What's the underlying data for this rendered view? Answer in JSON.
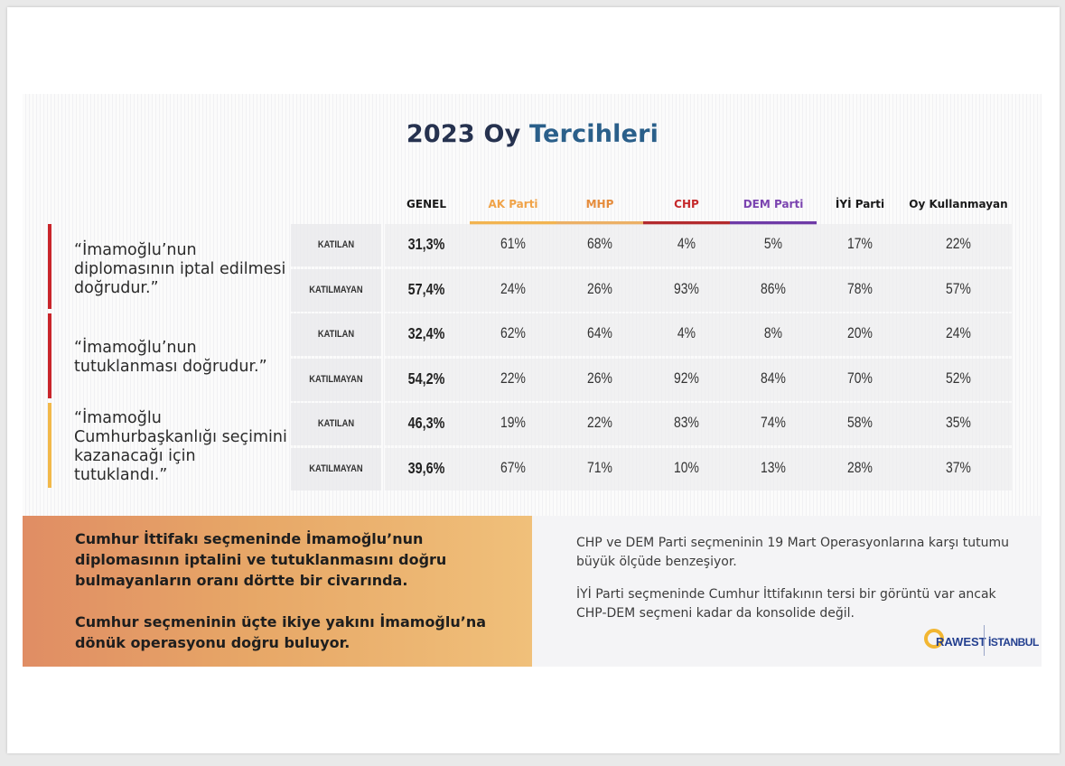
{
  "title": {
    "part1": "2023 Oy",
    "part2": "Tercihleri"
  },
  "chart_data": {
    "type": "table",
    "title": "2023 Oy Tercihleri",
    "columns": [
      {
        "label": "GENEL",
        "color": "#1a1a1a"
      },
      {
        "label": "AK Parti",
        "color": "#f0a348"
      },
      {
        "label": "MHP",
        "color": "#e58c3c"
      },
      {
        "label": "CHP",
        "color": "#c5292b"
      },
      {
        "label": "DEM Parti",
        "color": "#7b44b0"
      },
      {
        "label": "İYİ Parti",
        "color": "#1a1a1a"
      },
      {
        "label": "Oy Kullanmayan",
        "color": "#1a1a1a"
      }
    ],
    "statements": [
      {
        "text": "“İmamoğlu’nun diplomasının iptal edilmesi doğrudur.”",
        "bar_color": "#c9252b",
        "rows": [
          {
            "label": "KATILAN",
            "values": [
              "31,3%",
              "61%",
              "68%",
              "4%",
              "5%",
              "17%",
              "22%"
            ]
          },
          {
            "label": "KATILMAYAN",
            "values": [
              "57,4%",
              "24%",
              "26%",
              "93%",
              "86%",
              "78%",
              "57%"
            ]
          }
        ]
      },
      {
        "text": "“İmamoğlu’nun tutuklanması doğrudur.”",
        "bar_color": "#c9252b",
        "rows": [
          {
            "label": "KATILAN",
            "values": [
              "32,4%",
              "62%",
              "64%",
              "4%",
              "8%",
              "20%",
              "24%"
            ]
          },
          {
            "label": "KATILMAYAN",
            "values": [
              "54,2%",
              "22%",
              "26%",
              "92%",
              "84%",
              "70%",
              "52%"
            ]
          }
        ]
      },
      {
        "text": "“İmamoğlu Cumhurbaşkanlığı seçimini kazanacağı için tutuklandı.”",
        "bar_color": "#f2b94a",
        "rows": [
          {
            "label": "KATILAN",
            "values": [
              "46,3%",
              "19%",
              "22%",
              "83%",
              "74%",
              "58%",
              "35%"
            ]
          },
          {
            "label": "KATILMAYAN",
            "values": [
              "39,6%",
              "67%",
              "71%",
              "10%",
              "13%",
              "28%",
              "37%"
            ]
          }
        ]
      }
    ]
  },
  "bottom_left": {
    "p1": "Cumhur İttifakı seçmeninde İmamoğlu’nun diplomasının iptalini ve tutuklanmasını doğru bulmayanların oranı dörtte bir civarında.",
    "p2": "Cumhur seçmeninin üçte ikiye yakını İmamoğlu’na dönük operasyonu doğru buluyor."
  },
  "bottom_right": {
    "p1": "CHP ve DEM Parti seçmeninin 19 Mart Operasyonlarına karşı tutumu büyük ölçüde benzeşiyor.",
    "p2": "İYİ Parti seçmeninde Cumhur İttifakının tersi bir görüntü var ancak CHP-DEM seçmeni kadar da konsolide değil."
  },
  "logos": {
    "rawest": "RAWEST",
    "istanbul": "İSTANBUL"
  }
}
